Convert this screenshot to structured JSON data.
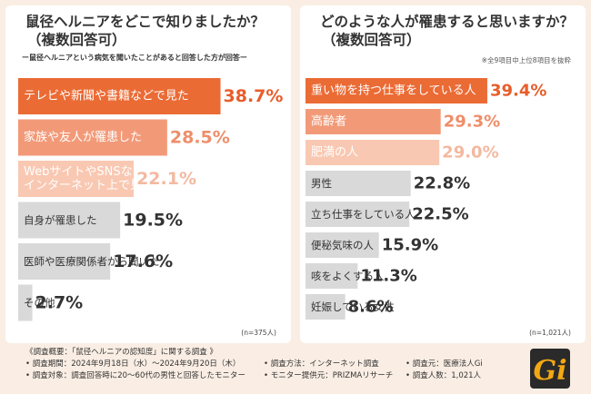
{
  "left": {
    "title_line1": "鼠径ヘルニアをどこで知りましたか？",
    "title_line2": "（複数回答可）",
    "subtitle": "ー鼠径ヘルニアという病気を聞いたことがあると回答した方が回答ー",
    "n_label": "(n=375人)"
  },
  "right": {
    "title_line1": "どのような人が罹患すると思いますか？",
    "title_line2": "（複数回答可）",
    "note": "※全9項目中上位8項目を抜粋",
    "n_label": "(n=1,021人)"
  },
  "chart_data": [
    {
      "type": "bar",
      "orientation": "horizontal",
      "title": "鼠径ヘルニアをどこで知りましたか？（複数回答可）",
      "categories": [
        [
          "テレビや新聞や書籍などで見た"
        ],
        [
          "家族や友人が罹患した"
        ],
        [
          "WebサイトやSNSなど",
          "インターネット上で見た"
        ],
        [
          "自身が罹患した"
        ],
        [
          "医師や医療関係者から聞いた"
        ],
        [
          "その他"
        ]
      ],
      "values": [
        38.7,
        28.5,
        22.1,
        19.5,
        17.6,
        2.7
      ],
      "value_labels": [
        "38.7%",
        "28.5%",
        "22.1%",
        "19.5%",
        "17.6%",
        "2.7%"
      ],
      "bar_colors": [
        "#eb6b35",
        "#f29a78",
        "#f9c8b2",
        "#d9d9d9",
        "#d9d9d9",
        "#d9d9d9"
      ],
      "value_colors": [
        "#e85d2a",
        "#ef8e6a",
        "#f3b9a0",
        "#333333",
        "#333333",
        "#333333"
      ],
      "xlim": [
        0,
        40
      ]
    },
    {
      "type": "bar",
      "orientation": "horizontal",
      "title": "どのような人が罹患すると思いますか？（複数回答可）",
      "categories": [
        [
          "重い物を持つ仕事をしている人"
        ],
        [
          "高齢者"
        ],
        [
          "肥満の人"
        ],
        [
          "男性"
        ],
        [
          "立ち仕事をしている人"
        ],
        [
          "便秘気味の人"
        ],
        [
          "咳をよくする人"
        ],
        [
          "妊娠している女性"
        ]
      ],
      "values": [
        39.4,
        29.3,
        29.0,
        22.8,
        22.5,
        15.9,
        11.3,
        8.6
      ],
      "value_labels": [
        "39.4%",
        "29.3%",
        "29.0%",
        "22.8%",
        "22.5%",
        "15.9%",
        "11.3%",
        "8.6%"
      ],
      "bar_colors": [
        "#eb6b35",
        "#f29a78",
        "#f9c8b2",
        "#d9d9d9",
        "#d9d9d9",
        "#d9d9d9",
        "#d9d9d9",
        "#d9d9d9"
      ],
      "value_colors": [
        "#e85d2a",
        "#ef8e6a",
        "#f3b9a0",
        "#333333",
        "#333333",
        "#333333",
        "#333333",
        "#333333"
      ],
      "xlim": [
        0,
        40
      ]
    }
  ],
  "footer": {
    "heading": "《調査概要：「鼠径ヘルニアの認知度」に関する調査 》",
    "period": "• 調査期間：2024年9月18日（水）〜2024年9月20日（木）",
    "method": "• 調査方法：インターネット調査",
    "client": "• 調査元：医療法人Gi",
    "target": "• 調査対象：調査回答時に20〜60代の男性と回答したモニター",
    "provider": "• モニター提供元：PRIZMAリサーチ",
    "count": "• 調査人数：1,021人"
  },
  "logo": {
    "text": "Gi",
    "colors": {
      "bg": "#2a2a2a",
      "letter": "#f2a814"
    }
  }
}
